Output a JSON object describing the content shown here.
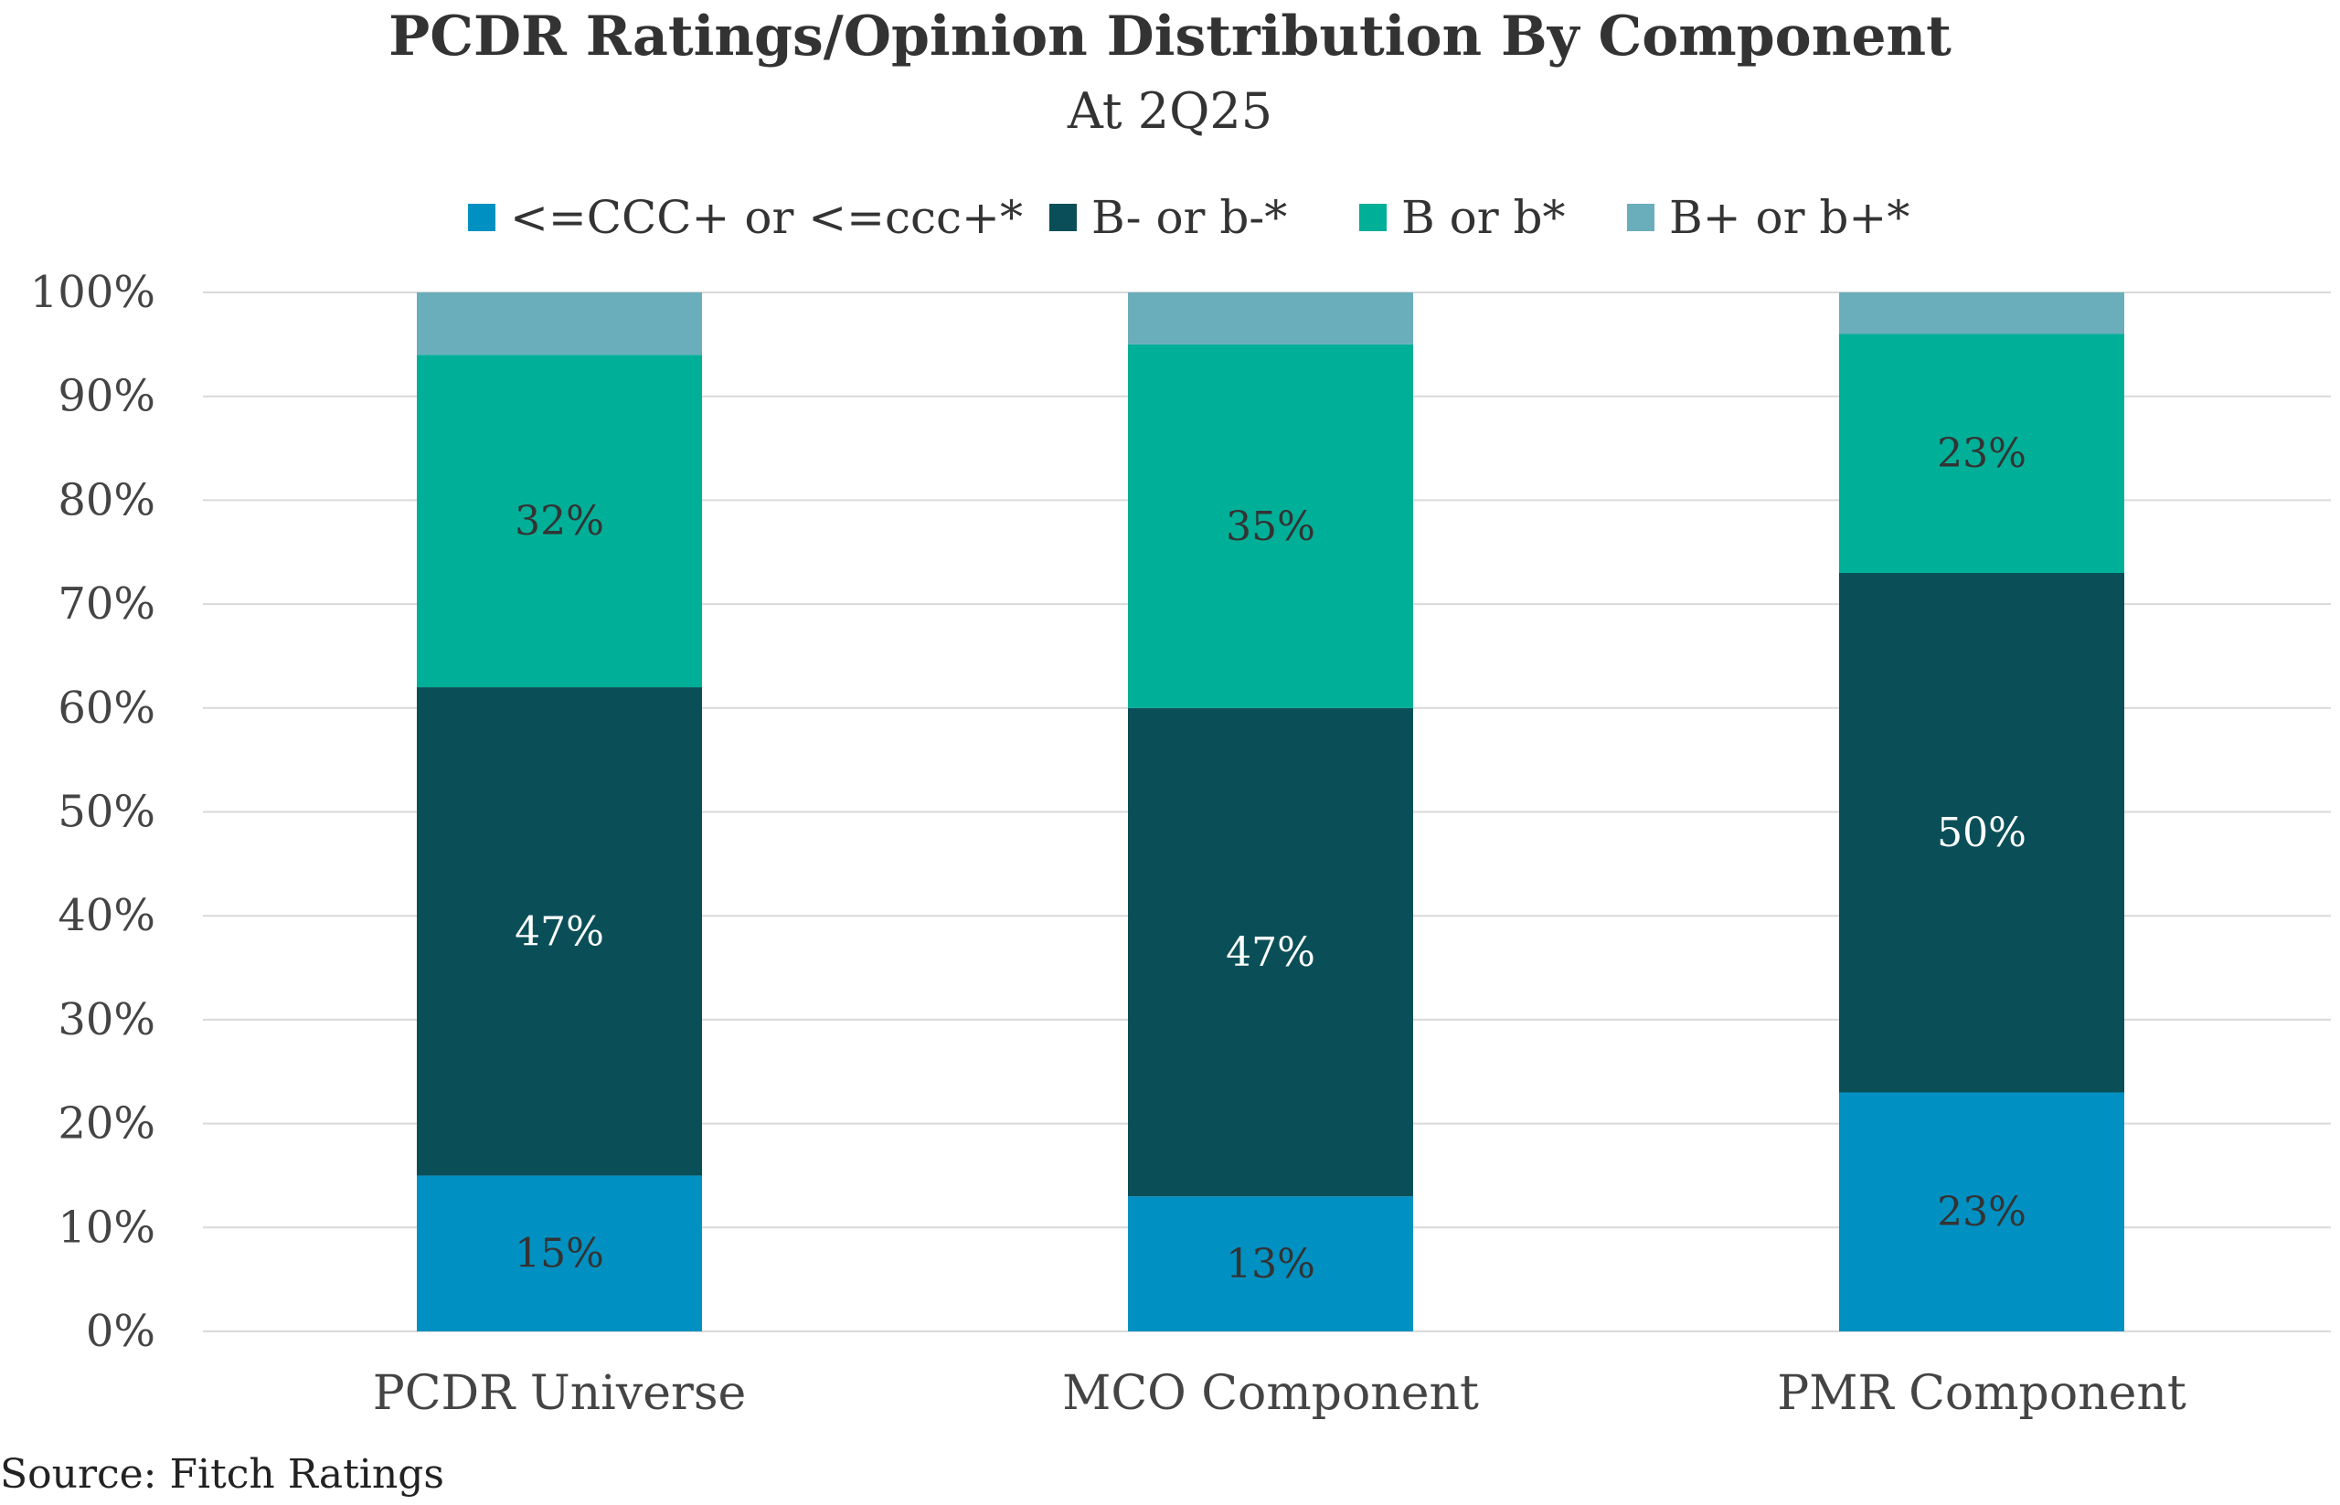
{
  "chart_data": {
    "type": "bar",
    "stacked": true,
    "title": "PCDR Ratings/Opinion Distribution By Component",
    "subtitle": "At 2Q25",
    "xlabel": "",
    "ylabel": "",
    "ylim": [
      0,
      100
    ],
    "y_ticks": [
      "0%",
      "10%",
      "20%",
      "30%",
      "40%",
      "50%",
      "60%",
      "70%",
      "80%",
      "90%",
      "100%"
    ],
    "grid": true,
    "legend_position": "top",
    "categories": [
      "PCDR Universe",
      "MCO Component",
      "PMR Component"
    ],
    "series": [
      {
        "name": "<=CCC+ or <=ccc+*",
        "color": "#0091C2",
        "label_color": "#333333",
        "values": [
          15,
          13,
          23
        ],
        "labels": [
          "15%",
          "13%",
          "23%"
        ]
      },
      {
        "name": "B- or b-*",
        "color": "#0A4F58",
        "label_color": "#FFFFFF",
        "values": [
          47,
          47,
          50
        ],
        "labels": [
          "47%",
          "47%",
          "50%"
        ]
      },
      {
        "name": "B or b*",
        "color": "#00AF98",
        "label_color": "#333333",
        "values": [
          32,
          35,
          23
        ],
        "labels": [
          "32%",
          "35%",
          "23%"
        ]
      },
      {
        "name": "B+ or b+*",
        "color": "#6AAEBB",
        "label_color": "#333333",
        "values": [
          6,
          5,
          4
        ],
        "labels": [
          "",
          "",
          ""
        ]
      }
    ],
    "source": "Source: Fitch Ratings"
  }
}
